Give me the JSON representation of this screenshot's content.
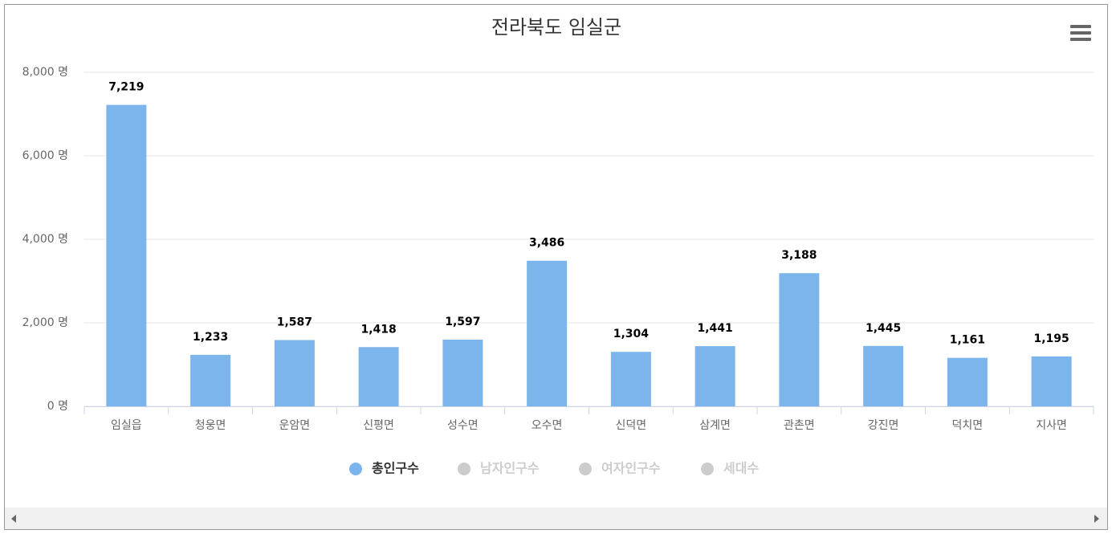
{
  "chart_data": {
    "type": "bar",
    "title": "전라북도 임실군",
    "categories": [
      "임실읍",
      "청웅면",
      "운암면",
      "신평면",
      "성수면",
      "오수면",
      "신덕면",
      "삼계면",
      "관촌면",
      "강진면",
      "덕치면",
      "지사면"
    ],
    "series": [
      {
        "name": "총인구수",
        "color": "#7cb5ec",
        "values": [
          7219,
          1233,
          1587,
          1418,
          1597,
          3486,
          1304,
          1441,
          3188,
          1445,
          1161,
          1195
        ],
        "value_labels": [
          "7,219",
          "1,233",
          "1,587",
          "1,418",
          "1,597",
          "3,486",
          "1,304",
          "1,441",
          "3,188",
          "1,445",
          "1,161",
          "1,195"
        ]
      }
    ],
    "hidden_series": [
      {
        "name": "남자인구수",
        "color": "#cccccc"
      },
      {
        "name": "여자인구수",
        "color": "#cccccc"
      },
      {
        "name": "세대수",
        "color": "#cccccc"
      }
    ],
    "ylim": [
      0,
      8000
    ],
    "yticks": [
      {
        "value": 0,
        "label": "0 명"
      },
      {
        "value": 2000,
        "label": "2,000 명"
      },
      {
        "value": 4000,
        "label": "4,000 명"
      },
      {
        "value": 6000,
        "label": "6,000 명"
      },
      {
        "value": 8000,
        "label": "8,000 명"
      }
    ],
    "grid": true
  }
}
